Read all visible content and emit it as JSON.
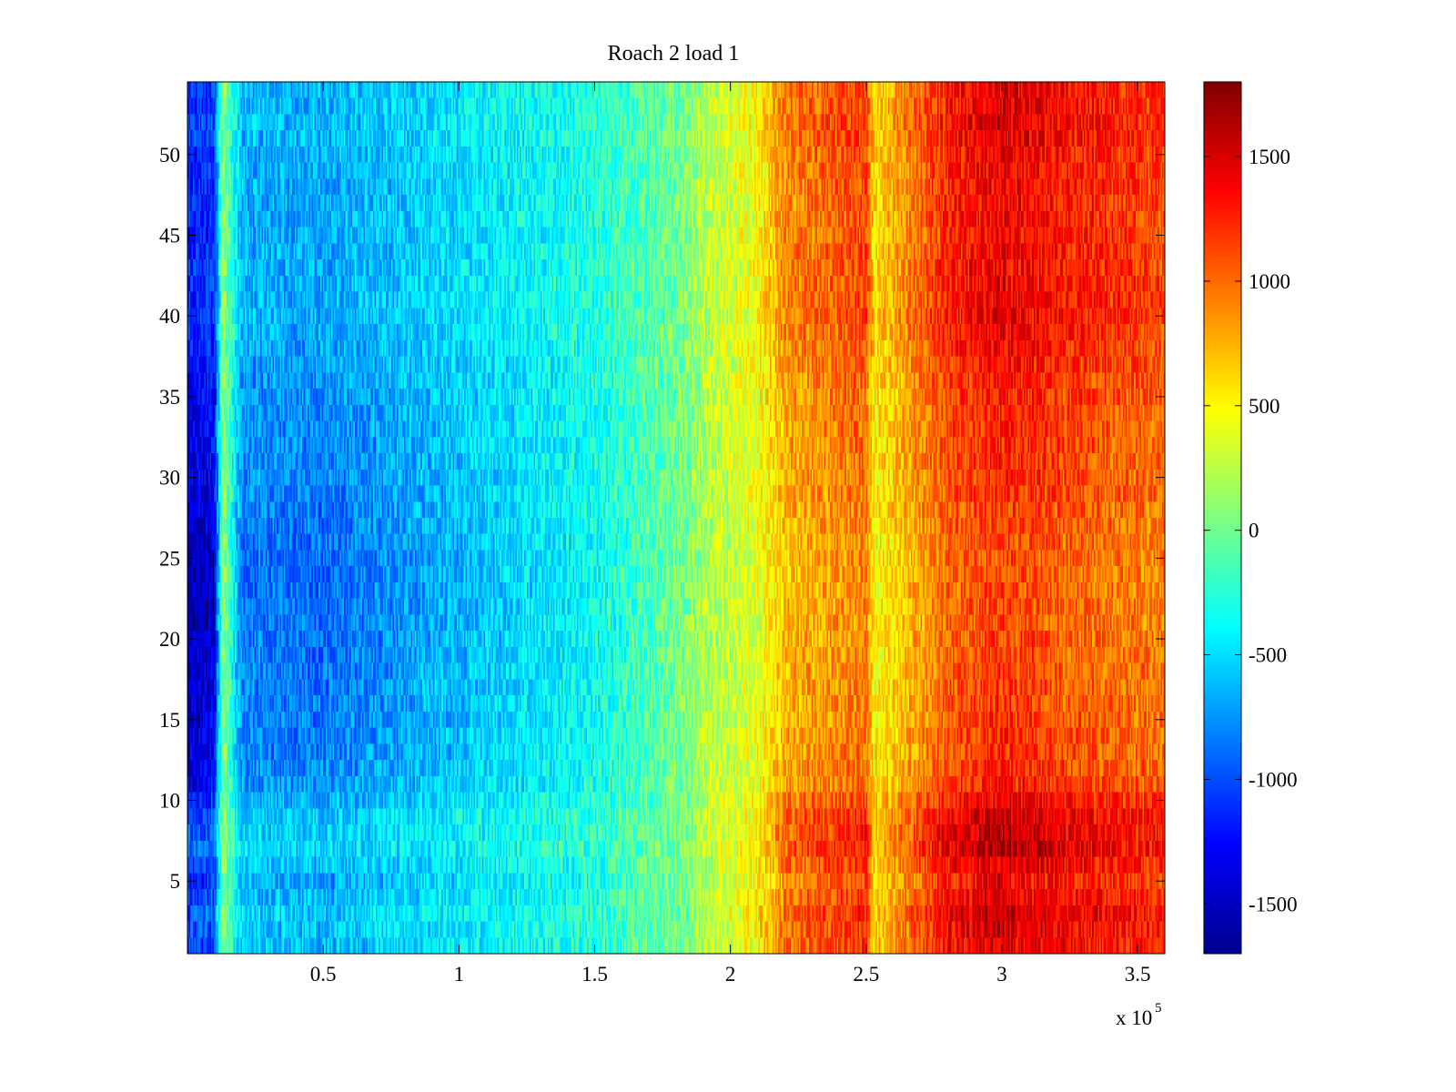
{
  "chart_data": {
    "type": "heatmap",
    "title": "Roach 2 load 1",
    "xlabel": "",
    "ylabel": "",
    "x_range": [
      0,
      360000
    ],
    "y_range": [
      0.5,
      54.5
    ],
    "x_ticks": [
      50000,
      100000,
      150000,
      200000,
      250000,
      300000,
      350000
    ],
    "x_tick_labels": [
      "0.5",
      "1",
      "1.5",
      "2",
      "2.5",
      "3",
      "3.5"
    ],
    "x_exponent_label": "x 10",
    "x_exponent": "5",
    "y_ticks": [
      5,
      10,
      15,
      20,
      25,
      30,
      35,
      40,
      45,
      50
    ],
    "y_tick_labels": [
      "5",
      "10",
      "15",
      "20",
      "25",
      "30",
      "35",
      "40",
      "45",
      "50"
    ],
    "colorbar": {
      "range": [
        -1700,
        1800
      ],
      "ticks": [
        -1500,
        -1000,
        -500,
        0,
        500,
        1000,
        1500
      ],
      "tick_labels": [
        "-1500",
        "-1000",
        "-500",
        "0",
        "500",
        "1000",
        "1500"
      ],
      "colormap": "jet"
    },
    "rows": 54,
    "column_profile": {
      "x": [
        0,
        10000,
        13000,
        20000,
        50000,
        100000,
        150000,
        185000,
        190000,
        210000,
        220000,
        250000,
        253000,
        280000,
        300000,
        330000,
        360000
      ],
      "mean_value": [
        -1450,
        -1350,
        150,
        -800,
        -850,
        -600,
        -350,
        50,
        200,
        400,
        750,
        950,
        500,
        1050,
        1200,
        1050,
        950
      ]
    },
    "row_profile": {
      "rows": [
        1,
        3,
        5,
        7,
        9,
        11,
        13,
        15,
        20,
        25,
        30,
        35,
        40,
        42,
        45,
        50,
        52,
        54
      ],
      "offset": [
        300,
        400,
        200,
        450,
        380,
        100,
        20,
        0,
        -60,
        -80,
        40,
        80,
        260,
        240,
        200,
        230,
        320,
        260
      ]
    }
  }
}
